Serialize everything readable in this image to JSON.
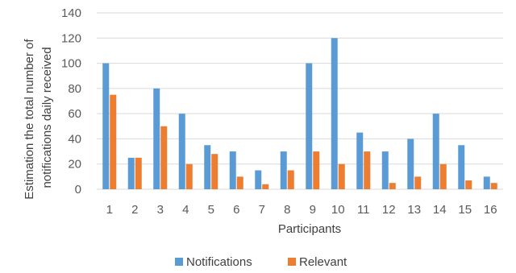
{
  "chart_data": {
    "type": "bar",
    "xlabel": "Participants",
    "ylabel": "Estimation the total number of notifications daily received",
    "ylabel_lines": [
      "Estimation the total number of",
      "notifications daily received"
    ],
    "categories": [
      "1",
      "2",
      "3",
      "4",
      "5",
      "6",
      "7",
      "8",
      "9",
      "10",
      "11",
      "12",
      "13",
      "14",
      "15",
      "16"
    ],
    "ylim": [
      0,
      140
    ],
    "yticks": [
      0,
      20,
      40,
      60,
      80,
      100,
      120,
      140
    ],
    "grid": true,
    "legend_position": "bottom",
    "series": [
      {
        "name": "Notifications",
        "color": "#5B9BD5",
        "values": [
          100,
          25,
          80,
          60,
          35,
          30,
          15,
          30,
          100,
          120,
          45,
          30,
          40,
          60,
          35,
          10
        ]
      },
      {
        "name": "Relevant",
        "color": "#ED7D31",
        "values": [
          75,
          25,
          50,
          20,
          28,
          10,
          4,
          15,
          30,
          20,
          30,
          5,
          10,
          20,
          7,
          5
        ]
      }
    ]
  }
}
